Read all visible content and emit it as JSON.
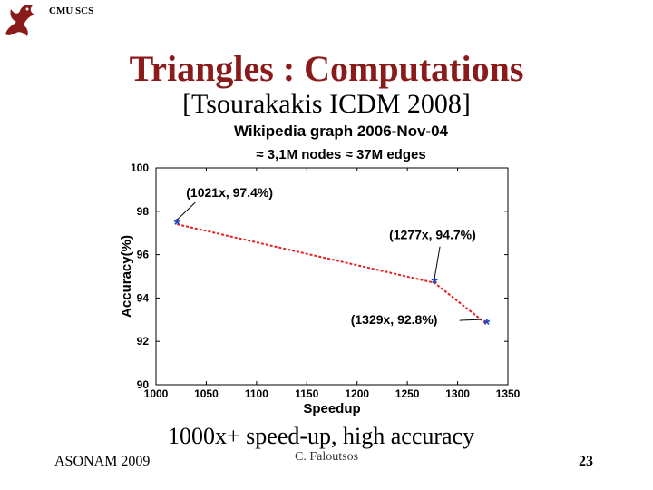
{
  "header": {
    "school": "CMU SCS",
    "logo_icon": "dragon-icon"
  },
  "slide": {
    "title": "Triangles : Computations",
    "subtitle": "[Tsourakakis ICDM 2008]",
    "caption": "1000x+ speed-up, high accuracy"
  },
  "footer": {
    "left": "ASONAM 2009",
    "center": "C. Faloutsos",
    "page": "23"
  },
  "colors": {
    "title": "#8b1a1a",
    "line": "#e02020",
    "marker": "#1f3fbf"
  },
  "chart_data": {
    "type": "line",
    "title": "Wikipedia graph 2006-Nov-04",
    "subtitle": "≈ 3,1M nodes ≈ 37M edges",
    "xlabel": "Speedup",
    "ylabel": "Accuracy(%)",
    "xlim": [
      1000,
      1350
    ],
    "ylim": [
      90,
      100
    ],
    "xticks": [
      1000,
      1050,
      1100,
      1150,
      1200,
      1250,
      1300,
      1350
    ],
    "yticks": [
      90,
      92,
      94,
      96,
      98,
      100
    ],
    "grid": false,
    "series": [
      {
        "x": [
          1021,
          1277,
          1329
        ],
        "y": [
          97.4,
          94.7,
          92.8
        ]
      }
    ],
    "annotations": [
      {
        "text": "(1021x, 97.4%)",
        "x": 1021,
        "y": 97.4
      },
      {
        "text": "(1277x, 94.7%)",
        "x": 1277,
        "y": 94.7
      },
      {
        "text": "(1329x, 92.8%)",
        "x": 1329,
        "y": 92.8
      }
    ]
  }
}
